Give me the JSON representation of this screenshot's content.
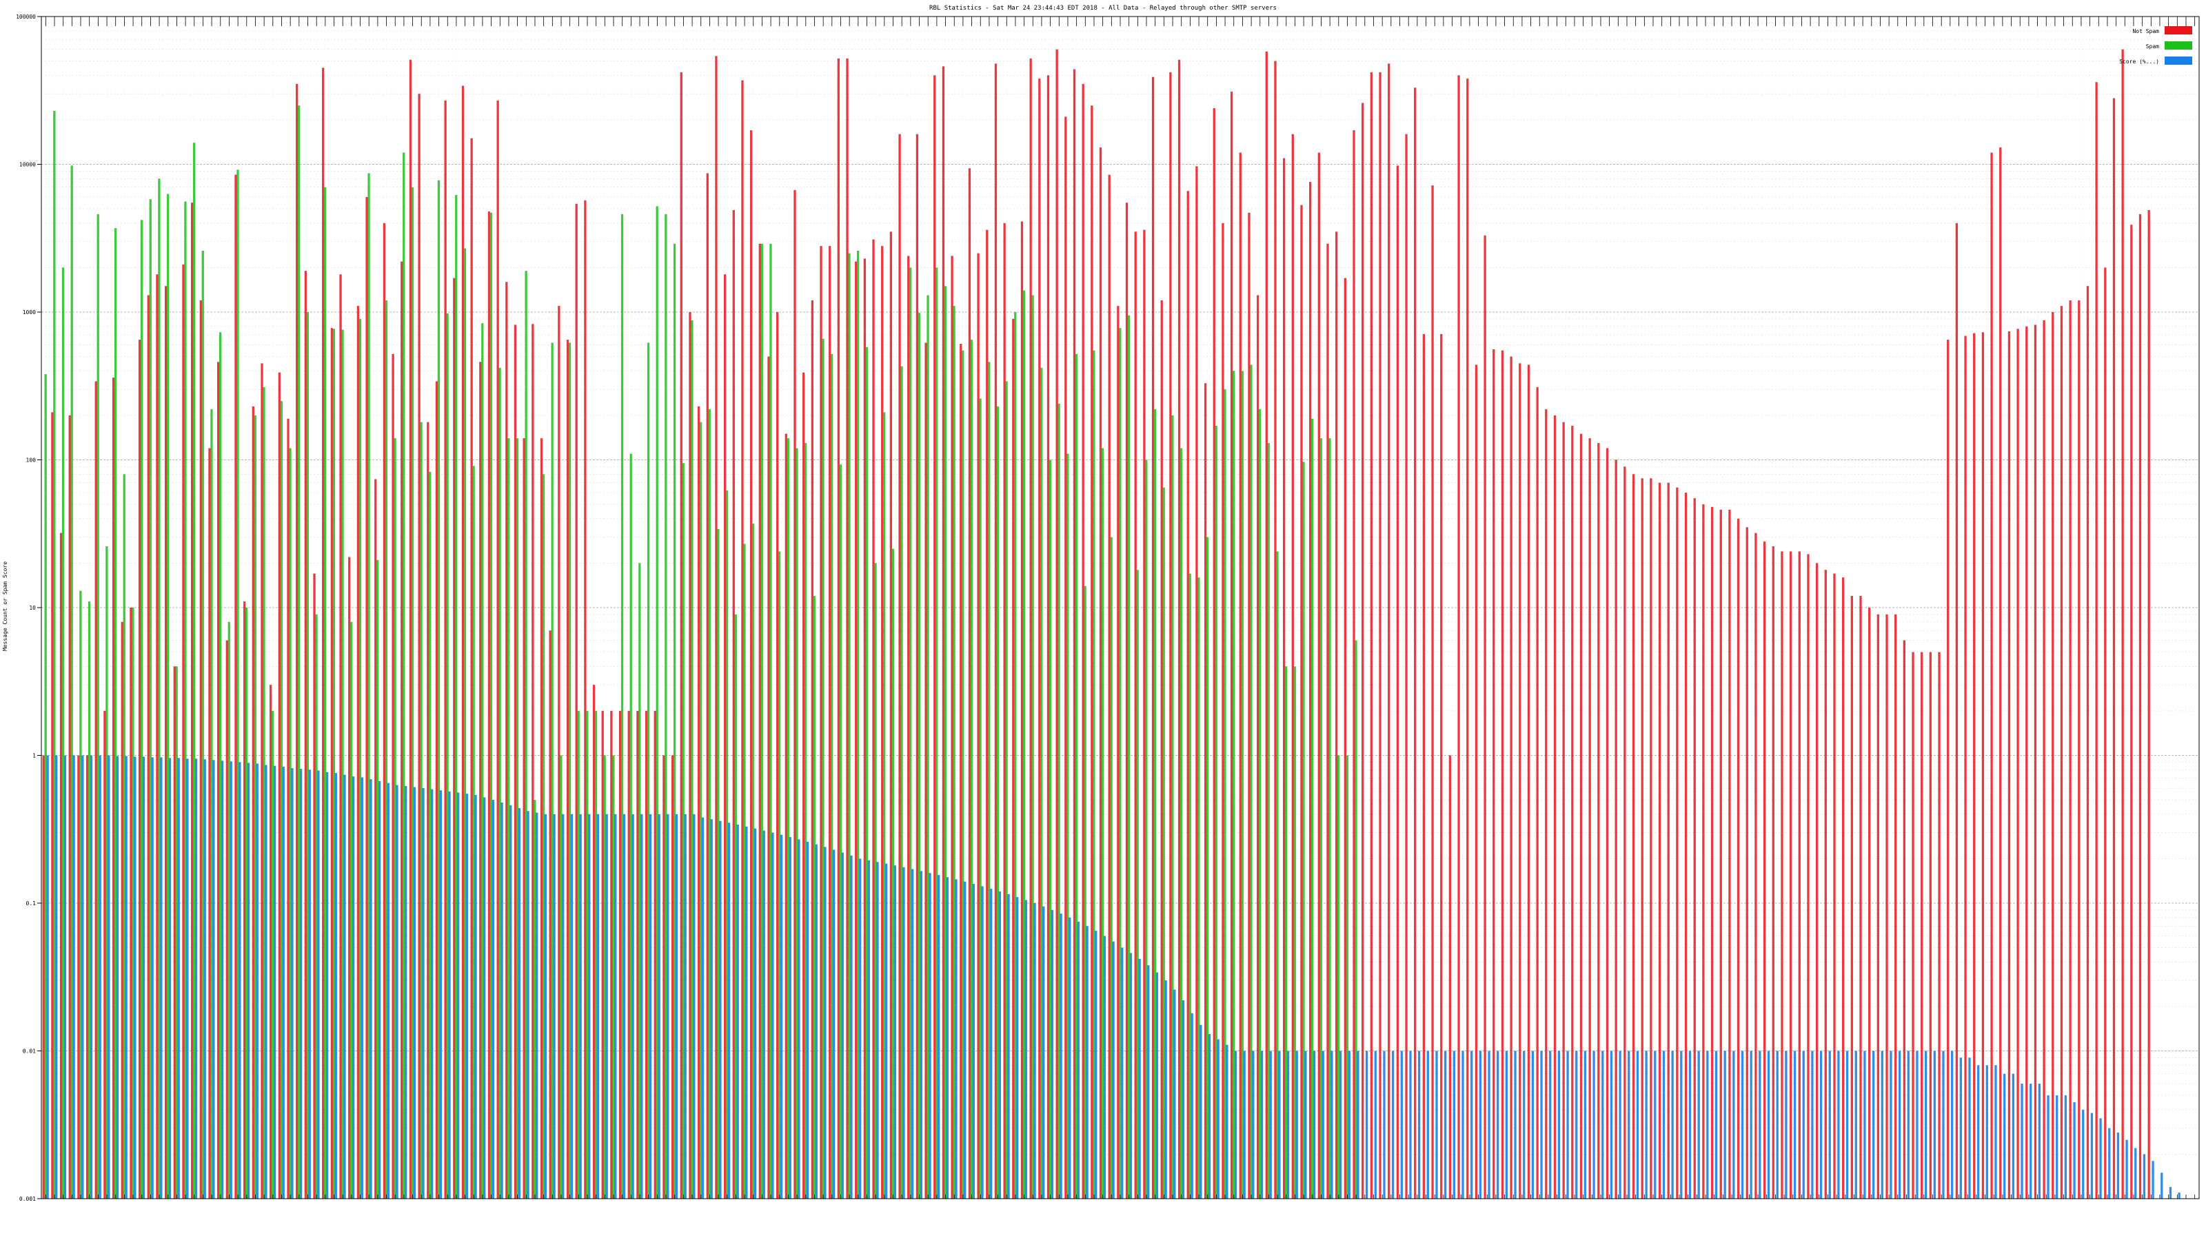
{
  "chart_data": {
    "type": "bar",
    "title": "RBL Statistics - Sat Mar 24 23:44:43 EDT 2018 - All Data - Relayed through other SMTP servers",
    "ylabel": "Message Count or Spam Score",
    "yscale": "log",
    "ylim": [
      0.001,
      100000
    ],
    "yticks": [
      "0.001",
      "0.01",
      "0.1",
      "1",
      "10",
      "100",
      "1000",
      "10000",
      "100000"
    ],
    "ytick_values": [
      0.001,
      0.01,
      0.1,
      1,
      10,
      100,
      1000,
      10000,
      100000
    ],
    "grid": true,
    "legend_position": "top-right",
    "colors": {
      "not_spam": "#e8141c",
      "spam": "#1cbf1c",
      "score": "#1a7fe8"
    },
    "series": [
      {
        "name": "Not Spam",
        "values": [
          1,
          210,
          32,
          200,
          1,
          1,
          340,
          2,
          360,
          8,
          10,
          650,
          1300,
          1800,
          1500,
          4,
          2100,
          5500,
          1200,
          120,
          460,
          6,
          8500,
          11,
          230,
          450,
          3,
          390,
          190,
          35000,
          1900,
          17,
          45000,
          780,
          1800,
          22,
          1100,
          6000,
          74,
          4000,
          520,
          2200,
          51000,
          30000,
          180,
          340,
          27000,
          1700,
          34000,
          15000,
          460,
          4800,
          27000,
          1600,
          820,
          140,
          830,
          140,
          7,
          1100,
          650,
          5400,
          5700,
          3,
          2,
          2,
          2,
          2,
          2,
          2,
          2,
          1,
          1,
          42000,
          1000,
          230,
          8700,
          54000,
          1800,
          4900,
          37000,
          17000,
          2900,
          500,
          1000,
          150,
          6700,
          390,
          1200,
          2800,
          2800,
          52000,
          52000,
          2200,
          2300,
          3100,
          2800,
          3500,
          16000,
          2400,
          16000,
          620,
          40000,
          46000,
          2400,
          610,
          9400,
          2500,
          3600,
          48000,
          4000,
          900,
          4100,
          52000,
          38000,
          40000,
          60000,
          21000,
          44000,
          35000,
          25000,
          13000,
          8500,
          1100,
          5500,
          3500,
          3600,
          39000,
          1200,
          42000,
          51000,
          6600,
          9700,
          330,
          24000,
          4000,
          31000,
          12000,
          4700,
          1300,
          58000,
          50000,
          11000,
          16000,
          5300,
          7600,
          12000,
          2900,
          3500,
          1700,
          17000,
          26000,
          42000,
          42000,
          48000,
          9800,
          16000,
          33000,
          710,
          7200,
          710,
          1,
          40000,
          38000,
          440,
          3300,
          560,
          550,
          500,
          450,
          440,
          310,
          220,
          200,
          180,
          170,
          150,
          140,
          130,
          120,
          100,
          90,
          80,
          75,
          75,
          70,
          70,
          65,
          60,
          55,
          50,
          48,
          46,
          46,
          40,
          35,
          32,
          28,
          26,
          24,
          24,
          24,
          23,
          20,
          18,
          17,
          16,
          12,
          12,
          10,
          9,
          9,
          9,
          6,
          5,
          5,
          5,
          5,
          650,
          4000,
          690,
          720,
          730,
          12000,
          13000,
          740,
          770,
          800,
          820,
          880,
          1000,
          1100,
          1200,
          1200,
          1500,
          36000,
          2000,
          28000,
          60000,
          3900,
          4600,
          4900
        ]
      },
      {
        "name": "Spam",
        "values": [
          380,
          23000,
          2000,
          9800,
          13,
          11,
          4600,
          26,
          3700,
          80,
          10,
          4200,
          5800,
          8000,
          6300,
          4,
          5600,
          14000,
          2600,
          220,
          730,
          8,
          9200,
          10,
          200,
          310,
          2,
          250,
          120,
          25000,
          1000,
          9,
          7000,
          770,
          760,
          8,
          900,
          8700,
          21,
          1200,
          140,
          12000,
          7000,
          180,
          83,
          7800,
          980,
          6200,
          2700,
          91,
          840,
          4700,
          420,
          140,
          140,
          1900,
          0.5,
          80,
          620,
          1,
          620,
          2,
          2,
          2,
          1,
          1,
          4600,
          110,
          20,
          620,
          5200,
          4600,
          2900,
          95,
          880,
          180,
          220,
          34,
          62,
          9,
          27,
          37,
          2900,
          2900,
          24,
          140,
          120,
          130,
          12,
          660,
          520,
          93,
          2500,
          2600,
          580,
          20,
          210,
          25,
          430,
          2000,
          990,
          1300,
          2000,
          1500,
          1100,
          550,
          650,
          260,
          460,
          230,
          340,
          1000,
          1400,
          1300,
          420,
          100,
          240,
          110,
          520,
          14,
          550,
          120,
          30,
          780,
          950,
          18,
          100,
          220,
          65,
          200,
          120,
          17,
          16,
          30,
          170,
          300,
          400,
          400,
          440,
          220,
          130,
          24,
          4,
          4,
          97,
          190,
          140,
          140,
          1,
          1,
          6
        ]
      },
      {
        "name": "Score (%...)",
        "values": [
          1.0,
          1.0,
          1.0,
          1.0,
          1.0,
          1.0,
          1.0,
          1.0,
          0.99,
          0.99,
          0.98,
          0.98,
          0.97,
          0.97,
          0.96,
          0.96,
          0.95,
          0.95,
          0.94,
          0.93,
          0.92,
          0.91,
          0.9,
          0.89,
          0.88,
          0.86,
          0.85,
          0.84,
          0.82,
          0.81,
          0.8,
          0.79,
          0.77,
          0.76,
          0.74,
          0.72,
          0.71,
          0.69,
          0.67,
          0.65,
          0.63,
          0.62,
          0.61,
          0.6,
          0.59,
          0.58,
          0.57,
          0.56,
          0.55,
          0.54,
          0.52,
          0.5,
          0.48,
          0.46,
          0.44,
          0.42,
          0.41,
          0.4,
          0.4,
          0.4,
          0.4,
          0.4,
          0.4,
          0.4,
          0.4,
          0.4,
          0.4,
          0.4,
          0.4,
          0.4,
          0.4,
          0.4,
          0.4,
          0.4,
          0.4,
          0.38,
          0.37,
          0.36,
          0.35,
          0.34,
          0.33,
          0.32,
          0.31,
          0.3,
          0.29,
          0.28,
          0.27,
          0.26,
          0.25,
          0.24,
          0.23,
          0.22,
          0.21,
          0.2,
          0.195,
          0.19,
          0.185,
          0.18,
          0.175,
          0.17,
          0.165,
          0.16,
          0.155,
          0.15,
          0.145,
          0.14,
          0.135,
          0.13,
          0.125,
          0.12,
          0.115,
          0.11,
          0.105,
          0.1,
          0.095,
          0.09,
          0.085,
          0.08,
          0.075,
          0.07,
          0.065,
          0.06,
          0.055,
          0.05,
          0.046,
          0.042,
          0.038,
          0.034,
          0.03,
          0.026,
          0.022,
          0.018,
          0.015,
          0.013,
          0.012,
          0.011,
          0.01,
          0.01,
          0.01,
          0.01,
          0.01,
          0.01,
          0.01,
          0.01,
          0.01,
          0.01,
          0.01,
          0.01,
          0.01,
          0.01,
          0.01,
          0.01,
          0.01,
          0.01,
          0.01,
          0.01,
          0.01,
          0.01,
          0.01,
          0.01,
          0.01,
          0.01,
          0.01,
          0.01,
          0.01,
          0.01,
          0.01,
          0.01,
          0.01,
          0.01,
          0.01,
          0.01,
          0.01,
          0.01,
          0.01,
          0.01,
          0.01,
          0.01,
          0.01,
          0.01,
          0.01,
          0.01,
          0.01,
          0.01,
          0.01,
          0.01,
          0.01,
          0.01,
          0.01,
          0.01,
          0.01,
          0.01,
          0.01,
          0.01,
          0.01,
          0.01,
          0.01,
          0.01,
          0.01,
          0.01,
          0.01,
          0.01,
          0.01,
          0.01,
          0.01,
          0.01,
          0.01,
          0.01,
          0.01,
          0.01,
          0.01,
          0.01,
          0.01,
          0.01,
          0.01,
          0.01,
          0.01,
          0.01,
          0.01,
          0.009,
          0.009,
          0.008,
          0.008,
          0.008,
          0.007,
          0.007,
          0.006,
          0.006,
          0.006,
          0.005,
          0.005,
          0.005,
          0.0045,
          0.004,
          0.0038,
          0.0035,
          0.003,
          0.0028,
          0.0025,
          0.0022,
          0.002,
          0.0018,
          0.0015,
          0.0012,
          0.0011,
          0.001,
          0.001
        ]
      }
    ]
  }
}
